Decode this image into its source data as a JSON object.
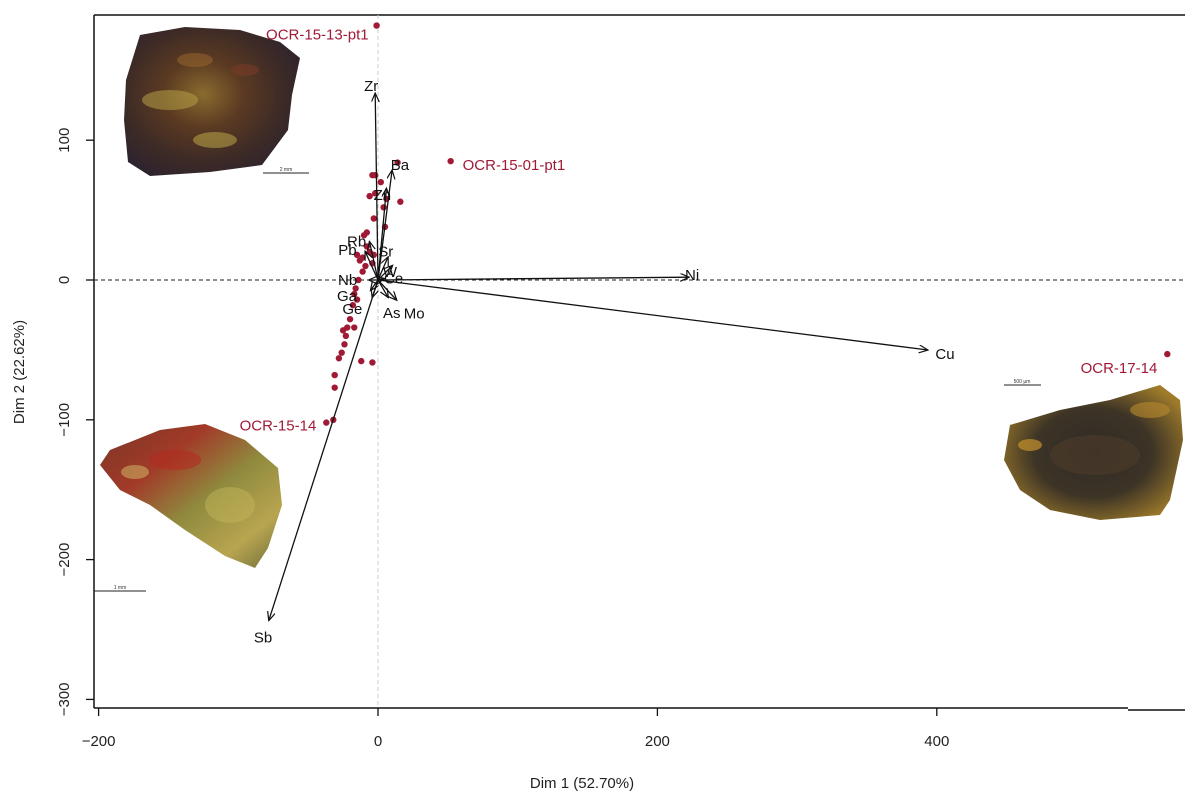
{
  "chart_data": {
    "type": "scatter",
    "title": "",
    "xlabel": "Dim 1 (52.70%)",
    "ylabel": "Dim 2 (22.62%)",
    "xlim": [
      -205,
      575
    ],
    "ylim": [
      -310,
      185
    ],
    "xticks": [
      -200,
      0,
      200,
      400
    ],
    "yticks": [
      100,
      0,
      -100,
      -200,
      -300
    ],
    "reference_lines": {
      "x": 0,
      "y": 0,
      "style": "dashed"
    },
    "grid": false,
    "point_color": "#a01a35",
    "arrow_color": "#111111",
    "points": [
      [
        -1,
        182
      ],
      [
        52,
        85
      ],
      [
        14,
        84
      ],
      [
        -2,
        75
      ],
      [
        -4,
        75
      ],
      [
        2,
        70
      ],
      [
        -2,
        62
      ],
      [
        -6,
        60
      ],
      [
        6,
        58
      ],
      [
        16,
        56
      ],
      [
        4,
        52
      ],
      [
        -3,
        44
      ],
      [
        5,
        38
      ],
      [
        -8,
        34
      ],
      [
        -10,
        32
      ],
      [
        -8,
        24
      ],
      [
        -15,
        18
      ],
      [
        -11,
        16
      ],
      [
        -6,
        20
      ],
      [
        -3,
        18
      ],
      [
        -13,
        14
      ],
      [
        -9,
        10
      ],
      [
        -4,
        12
      ],
      [
        -11,
        6
      ],
      [
        -14,
        0
      ],
      [
        -16,
        -6
      ],
      [
        -17,
        -10
      ],
      [
        -15,
        -14
      ],
      [
        -18,
        -18
      ],
      [
        -20,
        -28
      ],
      [
        -22,
        -34
      ],
      [
        -25,
        -36
      ],
      [
        -17,
        -34
      ],
      [
        -23,
        -40
      ],
      [
        -24,
        -46
      ],
      [
        -26,
        -52
      ],
      [
        -28,
        -56
      ],
      [
        -31,
        -68
      ],
      [
        -12,
        -58
      ],
      [
        -4,
        -59
      ],
      [
        -31,
        -77
      ],
      [
        -32,
        -100
      ],
      [
        -37,
        -102
      ],
      [
        565,
        -53
      ]
    ],
    "sample_labels": [
      {
        "text": "OCR-15-13-pt1",
        "x": -1,
        "y": 182
      },
      {
        "text": "OCR-15-01-pt1",
        "x": 52,
        "y": 85
      },
      {
        "text": "OCR-15-14",
        "x": -37,
        "y": -102
      },
      {
        "text": "OCR-17-14",
        "x": 565,
        "y": -53
      }
    ],
    "variables": [
      {
        "name": "Zr",
        "x": -2,
        "y": 133
      },
      {
        "name": "Ba",
        "x": 10,
        "y": 78
      },
      {
        "name": "Zn",
        "x": 6,
        "y": 65
      },
      {
        "name": "Rb",
        "x": -6,
        "y": 27
      },
      {
        "name": "Pb",
        "x": -9,
        "y": 20
      },
      {
        "name": "Sr",
        "x": 7,
        "y": 16
      },
      {
        "name": "W",
        "x": 10,
        "y": 10
      },
      {
        "name": "Nb",
        "x": -6,
        "y": 0
      },
      {
        "name": "Ce",
        "x": 4,
        "y": 1
      },
      {
        "name": "Ni",
        "x": 222,
        "y": 2
      },
      {
        "name": "Cu",
        "x": 393,
        "y": -50
      },
      {
        "name": "Ga",
        "x": -5,
        "y": -7
      },
      {
        "name": "Ge",
        "x": -4,
        "y": -12
      },
      {
        "name": "As",
        "x": 7,
        "y": -12
      },
      {
        "name": "Mo",
        "x": 13,
        "y": -14
      },
      {
        "name": "Sb",
        "x": -78,
        "y": -243
      }
    ]
  },
  "images": [
    {
      "sample": "OCR-15-13-pt1",
      "scale_bar": "2 mm"
    },
    {
      "sample": "OCR-15-01-pt1",
      "scale_bar": "1 mm"
    },
    {
      "sample": "OCR-17-14",
      "scale_bar": "500 µm"
    }
  ]
}
